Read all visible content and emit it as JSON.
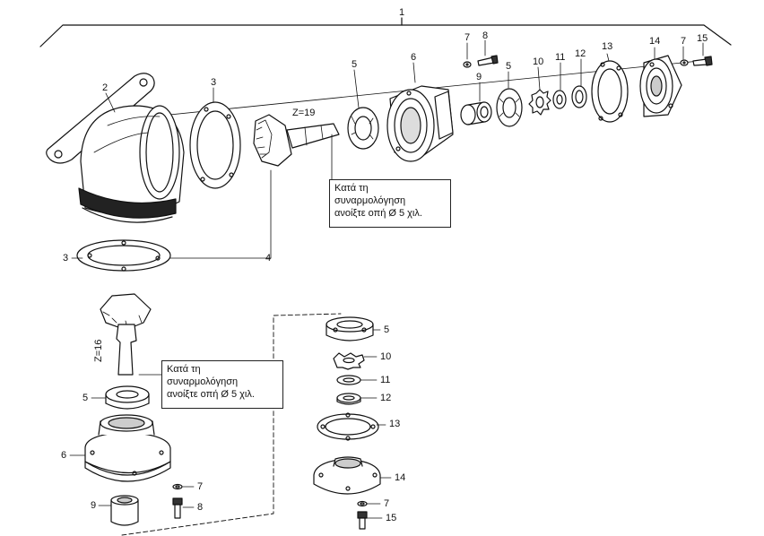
{
  "callouts": {
    "assembly": "1",
    "bracket_housing": "2",
    "gasket_upper": "3",
    "gasket_lower": "3",
    "gear_ring": "4",
    "bearing_upper": "5",
    "bearing_upper_b": "5",
    "bearing_lower": "5",
    "bearing_detail": "5",
    "flange_upper": "6",
    "flange_lower": "6",
    "washer_upper_a": "7",
    "washer_upper_b": "7",
    "washer_lower": "7",
    "washer_detail": "7",
    "bolt_upper": "8",
    "bolt_lower": "8",
    "sleeve_upper": "9",
    "sleeve_lower": "9",
    "lockwasher_upper": "10",
    "lockwasher_detail": "10",
    "nut_upper": "11",
    "nut_detail": "11",
    "ring_upper": "12",
    "ring_detail": "12",
    "gasket_cover_upper": "13",
    "gasket_cover_detail": "13",
    "cover_upper": "14",
    "cover_detail": "14",
    "screw_upper": "15",
    "screw_detail": "15"
  },
  "teeth": {
    "upper_pinion": "Z=19",
    "lower_pinion": "Z=16"
  },
  "notes": {
    "upper": {
      "line1": "Κατά τη",
      "line2": "συναρμολόγηση",
      "line3": "ανοίξτε οπή Ø 5 χιλ."
    },
    "lower": {
      "line1": "Κατά τη",
      "line2": "συναρμολόγηση",
      "line3": "ανοίξτε οπή Ø 5 χιλ."
    }
  }
}
